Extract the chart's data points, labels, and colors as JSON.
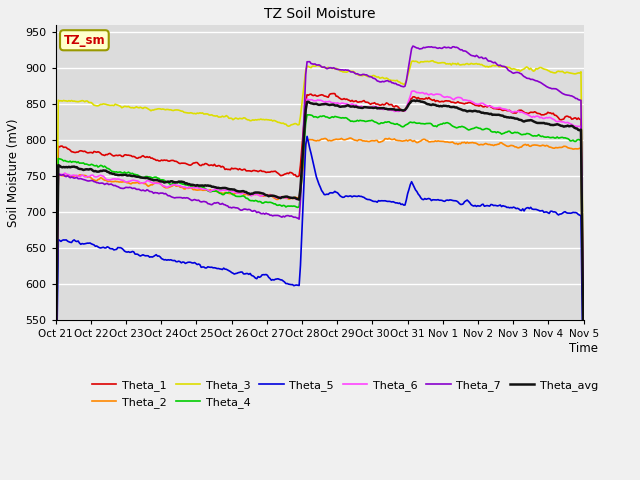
{
  "title": "TZ Soil Moisture",
  "xlabel": "Time",
  "ylabel": "Soil Moisture (mV)",
  "ylim": [
    550,
    960
  ],
  "yticks": [
    550,
    600,
    650,
    700,
    750,
    800,
    850,
    900,
    950
  ],
  "fig_bg": "#f0f0f0",
  "plot_bg": "#dcdcdc",
  "legend_label": "TZ_sm",
  "series_colors": {
    "Theta_1": "#dd0000",
    "Theta_2": "#ff8800",
    "Theta_3": "#dddd00",
    "Theta_4": "#00cc00",
    "Theta_5": "#0000dd",
    "Theta_6": "#ff44ff",
    "Theta_7": "#8800cc",
    "Theta_avg": "#111111"
  },
  "tick_labels": [
    "Oct 21",
    "Oct 22",
    "Oct 23",
    "Oct 24",
    "Oct 25",
    "Oct 26",
    "Oct 27",
    "Oct 28",
    "Oct 29",
    "Oct 30",
    "Oct 31",
    "Nov 1",
    "Nov 2",
    "Nov 3",
    "Nov 4",
    "Nov 5"
  ],
  "n_points": 400,
  "jump1": 7.0,
  "jump2": 10.0
}
